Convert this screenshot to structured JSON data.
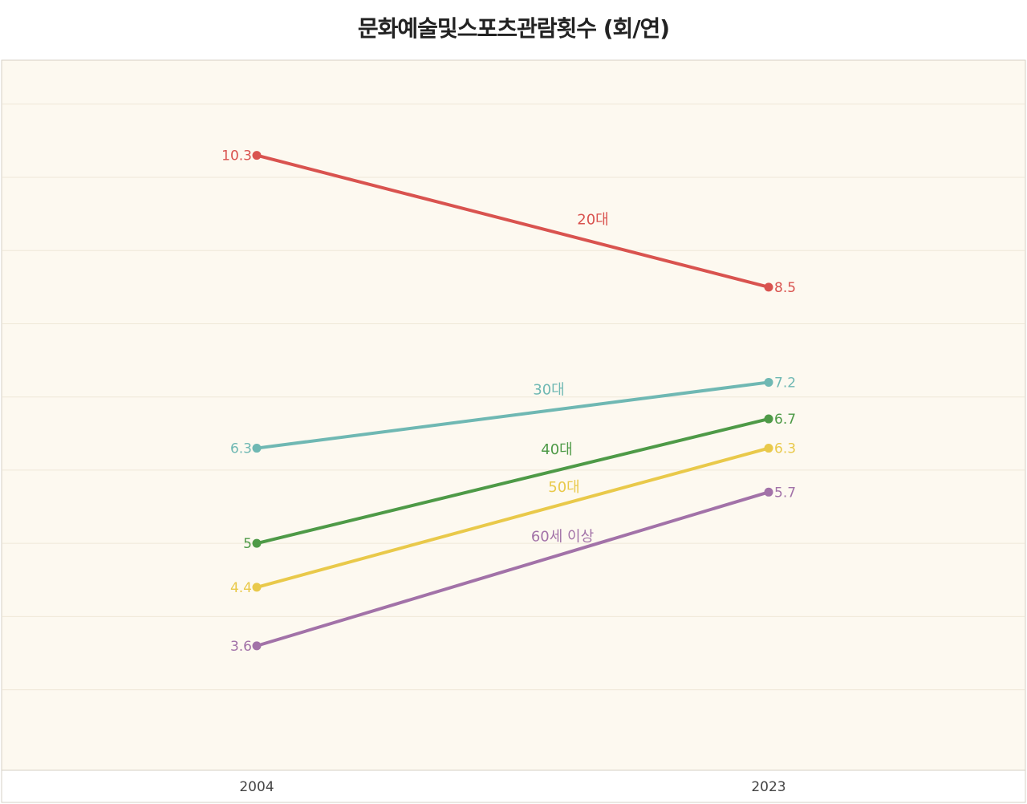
{
  "chart_data": {
    "type": "line",
    "title": "문화예술및스포츠관람횟수 (회/연)",
    "x": [
      "2004",
      "2023"
    ],
    "xlabel": "",
    "ylabel": "",
    "ylim": [
      1.9,
      11.6
    ],
    "grid": true,
    "series": [
      {
        "name": "20대",
        "values": [
          10.3,
          8.5
        ],
        "color": "#d9534f",
        "value_labels": [
          "10.3",
          "8.5"
        ]
      },
      {
        "name": "30대",
        "values": [
          6.3,
          7.2
        ],
        "color": "#6fb8b3",
        "value_labels": [
          "6.3",
          "7.2"
        ]
      },
      {
        "name": "40대",
        "values": [
          5,
          6.7
        ],
        "color": "#4e9a47",
        "value_labels": [
          "5",
          "6.7"
        ]
      },
      {
        "name": "50대",
        "values": [
          4.4,
          6.3
        ],
        "color": "#e9c94a",
        "value_labels": [
          "4.4",
          "6.3"
        ]
      },
      {
        "name": "60세 이상",
        "values": [
          3.6,
          5.7
        ],
        "color": "#a272a8",
        "value_labels": [
          "3.6",
          "5.7"
        ]
      }
    ]
  },
  "colors": {
    "plot_background": "#fdf9f0",
    "grid": "#efe8d8",
    "border": "#d6d0c4"
  }
}
